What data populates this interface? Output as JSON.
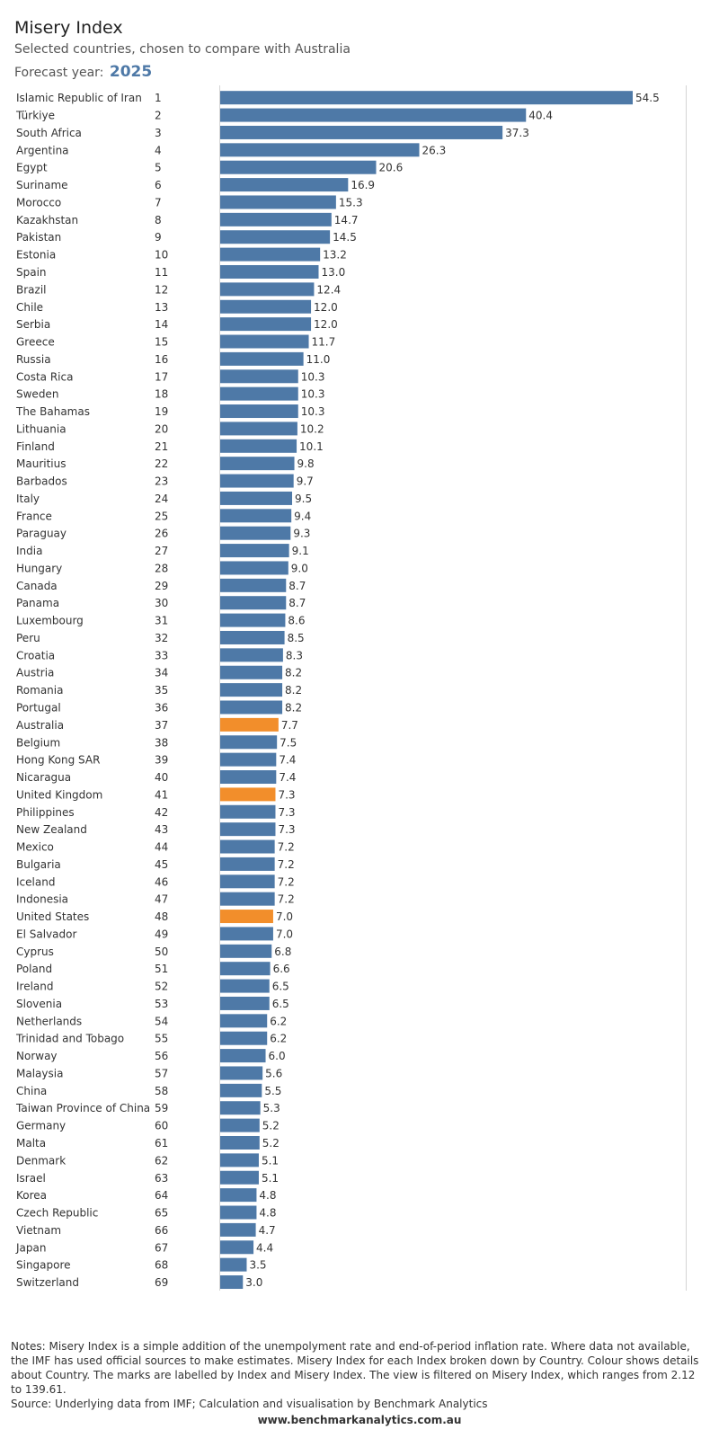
{
  "header": {
    "title": "Misery Index",
    "subtitle": "Selected countries, chosen to compare with Australia",
    "forecast_label": "Forecast year:",
    "forecast_year": "2025"
  },
  "colors": {
    "default_bar": "#4e79a7",
    "highlight_bar": "#f28e2b",
    "text": "#333333"
  },
  "chart_data": {
    "type": "bar",
    "orientation": "horizontal",
    "categories": [
      "Islamic Republic of Iran",
      "Türkiye",
      "South Africa",
      "Argentina",
      "Egypt",
      "Suriname",
      "Morocco",
      "Kazakhstan",
      "Pakistan",
      "Estonia",
      "Spain",
      "Brazil",
      "Chile",
      "Serbia",
      "Greece",
      "Russia",
      "Costa Rica",
      "Sweden",
      "The Bahamas",
      "Lithuania",
      "Finland",
      "Mauritius",
      "Barbados",
      "Italy",
      "France",
      "Paraguay",
      "India",
      "Hungary",
      "Canada",
      "Panama",
      "Luxembourg",
      "Peru",
      "Croatia",
      "Austria",
      "Romania",
      "Portugal",
      "Australia",
      "Belgium",
      "Hong Kong SAR",
      "Nicaragua",
      "United Kingdom",
      "Philippines",
      "New Zealand",
      "Mexico",
      "Bulgaria",
      "Iceland",
      "Indonesia",
      "United States",
      "El Salvador",
      "Cyprus",
      "Poland",
      "Ireland",
      "Slovenia",
      "Netherlands",
      "Trinidad and Tobago",
      "Norway",
      "Malaysia",
      "China",
      "Taiwan Province of China",
      "Germany",
      "Malta",
      "Denmark",
      "Israel",
      "Korea",
      "Czech Republic",
      "Vietnam",
      "Japan",
      "Singapore",
      "Switzerland"
    ],
    "ranks": [
      "1",
      "2",
      "3",
      "4",
      "5",
      "6",
      "7",
      "8",
      "9",
      "10",
      "11",
      "12",
      "13",
      "14",
      "15",
      "16",
      "17",
      "18",
      "19",
      "20",
      "21",
      "22",
      "23",
      "24",
      "25",
      "26",
      "27",
      "28",
      "29",
      "30",
      "31",
      "32",
      "33",
      "34",
      "35",
      "36",
      "37",
      "38",
      "39",
      "40",
      "41",
      "42",
      "43",
      "44",
      "45",
      "46",
      "47",
      "48",
      "49",
      "50",
      "51",
      "52",
      "53",
      "54",
      "55",
      "56",
      "57",
      "58",
      "59",
      "60",
      "61",
      "62",
      "63",
      "64",
      "65",
      "66",
      "67",
      "68",
      "69"
    ],
    "values": [
      54.5,
      40.4,
      37.3,
      26.3,
      20.6,
      16.9,
      15.3,
      14.7,
      14.5,
      13.2,
      13.0,
      12.4,
      12.0,
      12.0,
      11.7,
      11.0,
      10.3,
      10.3,
      10.3,
      10.2,
      10.1,
      9.8,
      9.7,
      9.5,
      9.4,
      9.3,
      9.1,
      9.0,
      8.7,
      8.7,
      8.6,
      8.5,
      8.3,
      8.2,
      8.2,
      8.2,
      7.7,
      7.5,
      7.4,
      7.4,
      7.3,
      7.3,
      7.3,
      7.2,
      7.2,
      7.2,
      7.2,
      7.0,
      7.0,
      6.8,
      6.6,
      6.5,
      6.5,
      6.2,
      6.2,
      6.0,
      5.6,
      5.5,
      5.3,
      5.2,
      5.2,
      5.1,
      5.1,
      4.8,
      4.8,
      4.7,
      4.4,
      3.5,
      3.0
    ],
    "value_labels": [
      "54.5",
      "40.4",
      "37.3",
      "26.3",
      "20.6",
      "16.9",
      "15.3",
      "14.7",
      "14.5",
      "13.2",
      "13.0",
      "12.4",
      "12.0",
      "12.0",
      "11.7",
      "11.0",
      "10.3",
      "10.3",
      "10.3",
      "10.2",
      "10.1",
      "9.8",
      "9.7",
      "9.5",
      "9.4",
      "9.3",
      "9.1",
      "9.0",
      "8.7",
      "8.7",
      "8.6",
      "8.5",
      "8.3",
      "8.2",
      "8.2",
      "8.2",
      "7.7",
      "7.5",
      "7.4",
      "7.4",
      "7.3",
      "7.3",
      "7.3",
      "7.2",
      "7.2",
      "7.2",
      "7.2",
      "7.0",
      "7.0",
      "6.8",
      "6.6",
      "6.5",
      "6.5",
      "6.2",
      "6.2",
      "6.0",
      "5.6",
      "5.5",
      "5.3",
      "5.2",
      "5.2",
      "5.1",
      "5.1",
      "4.8",
      "4.8",
      "4.7",
      "4.4",
      "3.5",
      "3.0"
    ],
    "highlighted": [
      "Australia",
      "United Kingdom",
      "United States"
    ],
    "xlim": [
      0,
      54.5
    ],
    "grid": false,
    "legend": "none"
  },
  "footer": {
    "notes": "Notes: Misery Index is a simple addition of the unempolyment rate and end-of-period inflation rate. Where data not available, the IMF has used official sources to make estimates. Misery Index for each Index broken down by Country.  Colour shows details about Country.  The marks are labelled by Index and Misery Index. The view is filtered on Misery Index, which ranges from 2.12 to 139.61.",
    "source": "Source: Underlying data from IMF; Calculation and visualisation by Benchmark Analytics",
    "website": "www.benchmarkanalytics.com.au"
  }
}
